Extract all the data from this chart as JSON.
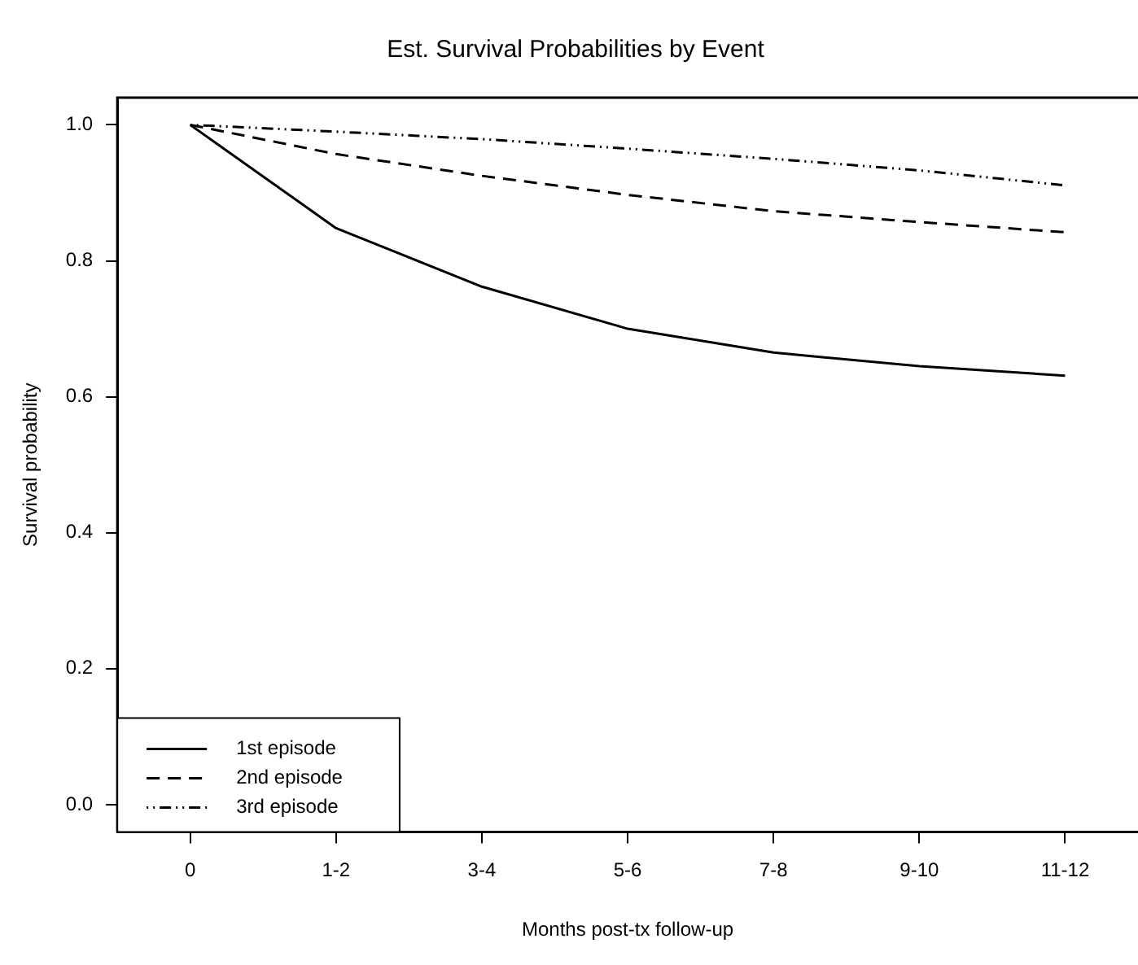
{
  "chart_data": {
    "type": "line",
    "title": "Est. Survival Probabilities by Event",
    "xlabel": "Months post-tx follow-up",
    "ylabel": "Survival probability",
    "categories": [
      "0",
      "1-2",
      "3-4",
      "5-6",
      "7-8",
      "9-10",
      "11-12"
    ],
    "series": [
      {
        "name": "1st episode",
        "color": "#000000",
        "line_style": "solid",
        "values": [
          1.0,
          0.848,
          0.762,
          0.7,
          0.665,
          0.645,
          0.631
        ]
      },
      {
        "name": "2nd episode",
        "color": "#000000",
        "line_style": "dashed",
        "values": [
          1.0,
          0.957,
          0.925,
          0.897,
          0.873,
          0.857,
          0.842
        ]
      },
      {
        "name": "3rd episode",
        "color": "#000000",
        "line_style": "dotted",
        "values": [
          1.0,
          0.99,
          0.979,
          0.965,
          0.95,
          0.933,
          0.911
        ]
      }
    ],
    "ylim": [
      -0.04,
      1.04
    ],
    "yticks": [
      {
        "value": 0,
        "label": "0.0"
      },
      0.2,
      0.4,
      0.6,
      0.8,
      {
        "value": 1,
        "label": "1.0"
      }
    ],
    "grid": false,
    "legend": "bottom left",
    "marker": "none"
  }
}
